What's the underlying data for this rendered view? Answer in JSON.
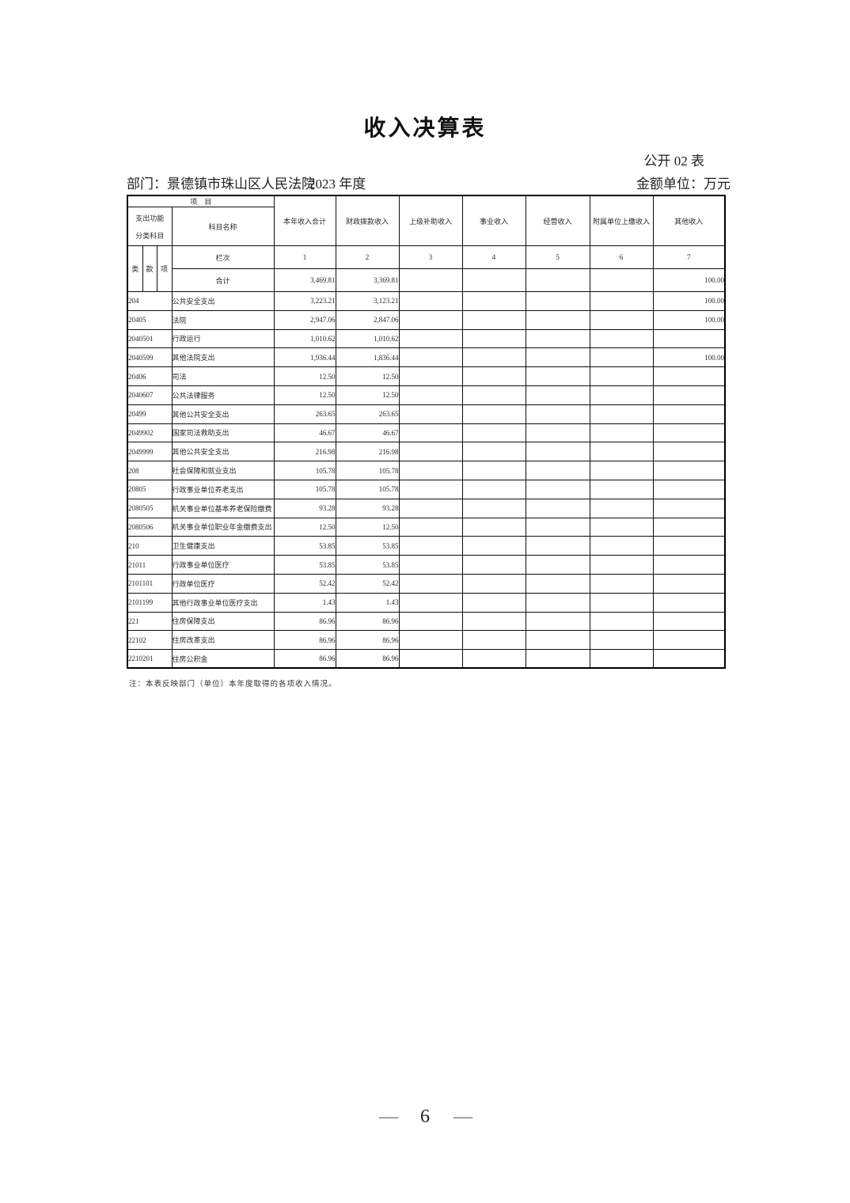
{
  "page": {
    "title": "收入决算表",
    "public_table_label": "公开 02 表",
    "department_label": "部门：景德镇市珠山区人民法院",
    "year_label": "2023 年度",
    "unit_label": "金额单位：万元",
    "note": "注：本表反映部门（单位）本年度取得的各项收入情况。",
    "footer_dash": "—",
    "page_number": "6"
  },
  "table": {
    "corner_title": "项　目",
    "left_header_line1": "支出功能",
    "left_header_line2": "分类科目",
    "subject_name_label": "科目名称",
    "sub_cols": [
      "类",
      "款",
      "项"
    ],
    "rank_label": "栏次",
    "columns": [
      "本年收入合计",
      "财政拨款收入",
      "上级补助收入",
      "事业收入",
      "经营收入",
      "附属单位上缴收入",
      "其他收入"
    ],
    "column_numbers": [
      "1",
      "2",
      "3",
      "4",
      "5",
      "6",
      "7"
    ],
    "total_row": {
      "label": "合计",
      "values": [
        "3,469.81",
        "3,369.81",
        "",
        "",
        "",
        "",
        "100.00"
      ]
    },
    "rows": [
      {
        "code": "204",
        "name": "公共安全支出",
        "values": [
          "3,223.21",
          "3,123.21",
          "",
          "",
          "",
          "",
          "100.00"
        ]
      },
      {
        "code": "20405",
        "name": "法院",
        "values": [
          "2,947.06",
          "2,847.06",
          "",
          "",
          "",
          "",
          "100.00"
        ]
      },
      {
        "code": "2040501",
        "name": "行政运行",
        "values": [
          "1,010.62",
          "1,010.62",
          "",
          "",
          "",
          "",
          ""
        ]
      },
      {
        "code": "2040599",
        "name": "其他法院支出",
        "values": [
          "1,936.44",
          "1,836.44",
          "",
          "",
          "",
          "",
          "100.00"
        ]
      },
      {
        "code": "20406",
        "name": "司法",
        "values": [
          "12.50",
          "12.50",
          "",
          "",
          "",
          "",
          ""
        ]
      },
      {
        "code": "2040607",
        "name": "公共法律服务",
        "values": [
          "12.50",
          "12.50",
          "",
          "",
          "",
          "",
          ""
        ]
      },
      {
        "code": "20499",
        "name": "其他公共安全支出",
        "values": [
          "263.65",
          "263.65",
          "",
          "",
          "",
          "",
          ""
        ]
      },
      {
        "code": "2049902",
        "name": "国家司法救助支出",
        "values": [
          "46.67",
          "46.67",
          "",
          "",
          "",
          "",
          ""
        ]
      },
      {
        "code": "2049999",
        "name": "其他公共安全支出",
        "values": [
          "216.98",
          "216.98",
          "",
          "",
          "",
          "",
          ""
        ]
      },
      {
        "code": "208",
        "name": "社会保障和就业支出",
        "values": [
          "105.78",
          "105.78",
          "",
          "",
          "",
          "",
          ""
        ]
      },
      {
        "code": "20805",
        "name": "行政事业单位养老支出",
        "values": [
          "105.78",
          "105.78",
          "",
          "",
          "",
          "",
          ""
        ]
      },
      {
        "code": "2080505",
        "name": "机关事业单位基本养老保险缴费",
        "values": [
          "93.28",
          "93.28",
          "",
          "",
          "",
          "",
          ""
        ]
      },
      {
        "code": "2080506",
        "name": "机关事业单位职业年金缴费支出",
        "values": [
          "12.50",
          "12.50",
          "",
          "",
          "",
          "",
          ""
        ]
      },
      {
        "code": "210",
        "name": "卫生健康支出",
        "values": [
          "53.85",
          "53.85",
          "",
          "",
          "",
          "",
          ""
        ]
      },
      {
        "code": "21011",
        "name": "行政事业单位医疗",
        "values": [
          "53.85",
          "53.85",
          "",
          "",
          "",
          "",
          ""
        ]
      },
      {
        "code": "2101101",
        "name": "行政单位医疗",
        "values": [
          "52.42",
          "52.42",
          "",
          "",
          "",
          "",
          ""
        ]
      },
      {
        "code": "2101199",
        "name": "其他行政事业单位医疗支出",
        "values": [
          "1.43",
          "1.43",
          "",
          "",
          "",
          "",
          ""
        ]
      },
      {
        "code": "221",
        "name": "住房保障支出",
        "values": [
          "86.96",
          "86.96",
          "",
          "",
          "",
          "",
          ""
        ]
      },
      {
        "code": "22102",
        "name": "住房改革支出",
        "values": [
          "86.96",
          "86.96",
          "",
          "",
          "",
          "",
          ""
        ]
      },
      {
        "code": "2210201",
        "name": "住房公积金",
        "values": [
          "86.96",
          "86.96",
          "",
          "",
          "",
          "",
          ""
        ]
      }
    ]
  }
}
